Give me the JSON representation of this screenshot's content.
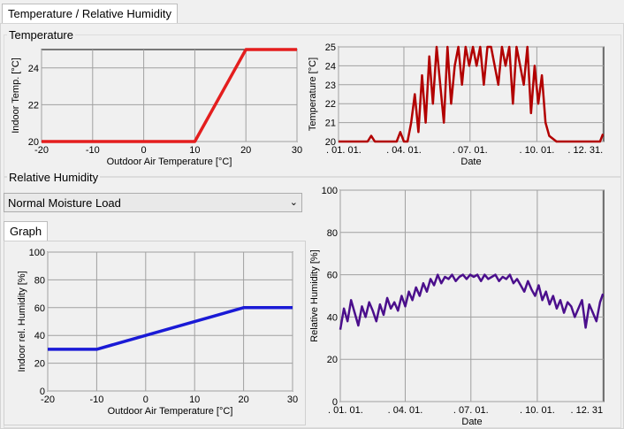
{
  "tabs": [
    {
      "label": "Temperature / Relative Humidity"
    }
  ],
  "temperature_section": {
    "label": "Temperature"
  },
  "humidity_section": {
    "label": "Relative Humidity"
  },
  "moisture_load": {
    "selected": "Normal Moisture Load"
  },
  "graph_tab": {
    "label": "Graph"
  },
  "colors": {
    "temp_line": "#e41e1e",
    "temp_series": "#b20000",
    "rh_line": "#1a1ad6",
    "rh_series": "#4b0f8c",
    "grid": "#a0a0a0",
    "plot_bg": "#f0f0f0"
  },
  "chart_data": [
    {
      "id": "indoor-temp",
      "type": "line",
      "xlabel": "Outdoor Air Temperature [°C]",
      "ylabel": "Indoor Temp. [°C]",
      "xlim": [
        -20,
        30
      ],
      "ylim": [
        20,
        25
      ],
      "xticks": [
        -20,
        -10,
        0,
        10,
        20,
        30
      ],
      "yticks": [
        20,
        22,
        24
      ],
      "x": [
        -20,
        10,
        20,
        30
      ],
      "y": [
        20,
        20,
        25,
        25
      ]
    },
    {
      "id": "temperature-series",
      "type": "line",
      "xlabel": "Date",
      "ylabel": "Temperature [°C]",
      "xlim": [
        0,
        365
      ],
      "ylim": [
        20,
        25
      ],
      "xticks": [
        0,
        90,
        181,
        273,
        364
      ],
      "xticklabels": [
        ". 01. 01.",
        ". 04. 01.",
        ". 07. 01.",
        ". 10. 01.",
        ". 12. 31."
      ],
      "yticks": [
        20,
        21,
        22,
        23,
        24,
        25
      ],
      "x": [
        0,
        40,
        45,
        50,
        55,
        60,
        65,
        70,
        75,
        80,
        85,
        90,
        95,
        100,
        105,
        110,
        115,
        120,
        125,
        130,
        135,
        140,
        145,
        150,
        155,
        160,
        165,
        170,
        175,
        180,
        185,
        190,
        195,
        200,
        205,
        210,
        215,
        220,
        225,
        230,
        235,
        240,
        245,
        250,
        255,
        260,
        265,
        270,
        275,
        280,
        285,
        290,
        300,
        330,
        360,
        364
      ],
      "y": [
        20,
        20,
        20.3,
        20,
        20,
        20,
        20,
        20,
        20,
        20,
        20.5,
        20,
        20,
        21,
        22.5,
        20.5,
        23.5,
        21,
        24.5,
        22,
        25,
        23,
        21,
        25,
        22,
        24,
        25,
        23,
        25,
        24,
        25,
        24,
        25,
        23,
        25,
        25,
        24,
        23,
        25,
        24,
        25,
        22,
        25,
        24,
        23,
        25,
        21.5,
        24,
        22,
        23.5,
        21,
        20.3,
        20,
        20,
        20,
        20.4
      ]
    },
    {
      "id": "indoor-rh",
      "type": "line",
      "xlabel": "Outdoor Air Temperature [°C]",
      "ylabel": "Indoor rel. Humidity [%]",
      "xlim": [
        -20,
        30
      ],
      "ylim": [
        0,
        100
      ],
      "xticks": [
        -20,
        -10,
        0,
        10,
        20,
        30
      ],
      "yticks": [
        0,
        20,
        40,
        60,
        80,
        100
      ],
      "x": [
        -20,
        -10,
        20,
        30
      ],
      "y": [
        30,
        30,
        60,
        60
      ]
    },
    {
      "id": "rh-series",
      "type": "line",
      "xlabel": "Date",
      "ylabel": "Relative Humidity [%]",
      "xlim": [
        0,
        365
      ],
      "ylim": [
        0,
        100
      ],
      "xticks": [
        0,
        90,
        181,
        273,
        364
      ],
      "xticklabels": [
        ". 01. 01.",
        ". 04. 01.",
        ". 07. 01.",
        ". 10. 01.",
        ". 12. 31"
      ],
      "yticks": [
        0,
        20,
        40,
        60,
        80,
        100
      ],
      "x": [
        0,
        5,
        10,
        15,
        20,
        25,
        30,
        35,
        40,
        45,
        50,
        55,
        60,
        65,
        70,
        75,
        80,
        85,
        90,
        95,
        100,
        105,
        110,
        115,
        120,
        125,
        130,
        135,
        140,
        145,
        150,
        155,
        160,
        165,
        170,
        175,
        180,
        185,
        190,
        195,
        200,
        205,
        210,
        215,
        220,
        225,
        230,
        235,
        240,
        245,
        250,
        255,
        260,
        265,
        270,
        275,
        280,
        285,
        290,
        295,
        300,
        305,
        310,
        315,
        320,
        325,
        330,
        335,
        340,
        345,
        350,
        355,
        360,
        364
      ],
      "y": [
        34,
        44,
        38,
        48,
        42,
        36,
        45,
        40,
        47,
        43,
        38,
        46,
        41,
        49,
        44,
        47,
        43,
        50,
        45,
        52,
        48,
        54,
        50,
        56,
        52,
        58,
        55,
        60,
        56,
        59,
        58,
        60,
        57,
        59,
        60,
        58,
        60,
        59,
        60,
        57,
        60,
        58,
        59,
        60,
        57,
        59,
        58,
        60,
        56,
        58,
        55,
        52,
        57,
        53,
        50,
        55,
        48,
        52,
        46,
        50,
        44,
        48,
        42,
        47,
        45,
        40,
        44,
        48,
        35,
        46,
        42,
        38,
        47,
        51
      ]
    }
  ]
}
